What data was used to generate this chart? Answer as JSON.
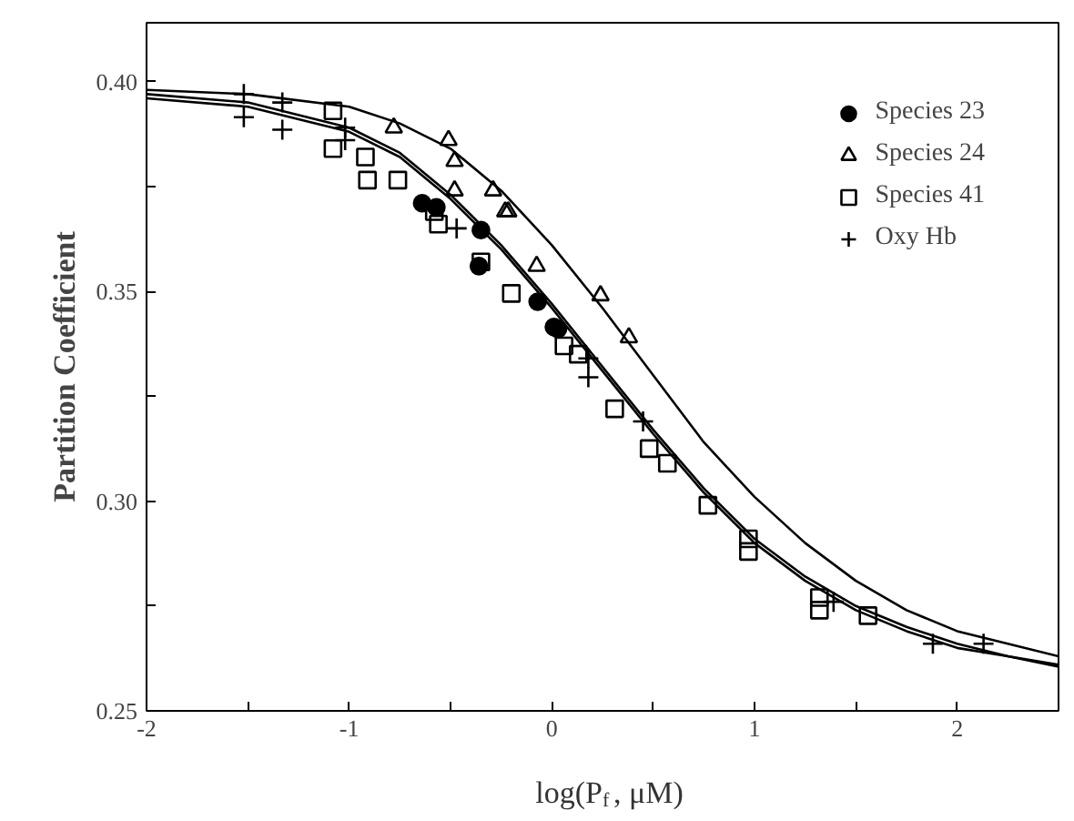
{
  "chart_data": {
    "type": "scatter",
    "xlabel": "log(P$_{f}$, μM)",
    "ylabel": "Partition Coefficient",
    "xlim": [
      -2,
      2.5
    ],
    "ylim": [
      0.25,
      0.414
    ],
    "xticks": [
      -2,
      {
        "value": -1.5,
        "label": null
      },
      -1,
      {
        "value": -0.5,
        "label": null
      },
      0,
      {
        "value": 0.5,
        "label": null
      },
      1,
      {
        "value": 1.5,
        "label": null
      },
      2
    ],
    "yticks": [
      "0.25",
      {
        "value": 0.275,
        "label": null
      },
      {
        "value": 0.3,
        "label": "0.30"
      },
      {
        "value": 0.325,
        "label": null
      },
      {
        "value": 0.35,
        "label": "0.35"
      },
      {
        "value": 0.375,
        "label": null
      },
      {
        "value": 0.4,
        "label": "0.40"
      }
    ],
    "grid": false,
    "legend": "top right",
    "series": [
      {
        "name": "Species 23",
        "color": "#000000",
        "marker": "circle",
        "x": [
          -0.64,
          -0.57,
          -0.35,
          -0.36,
          -0.07,
          0.01,
          0.03
        ],
        "values": [
          0.371,
          0.37,
          0.3646,
          0.356,
          0.3475,
          0.3415,
          0.341
        ]
      },
      {
        "name": "Species 24",
        "color": "#000000",
        "marker": "triangle",
        "x": [
          -0.78,
          -0.51,
          -0.48,
          -0.48,
          -0.29,
          -0.23,
          -0.215,
          -0.075,
          0.24,
          0.38
        ],
        "values": [
          0.389,
          0.386,
          0.381,
          0.374,
          0.374,
          0.369,
          0.369,
          0.356,
          0.349,
          0.339
        ]
      },
      {
        "name": "Species 41",
        "color": "#000000",
        "marker": "square",
        "x": [
          -1.08,
          -1.08,
          -0.92,
          -0.91,
          -0.76,
          -0.58,
          -0.56,
          -0.35,
          -0.2,
          0.06,
          0.13,
          0.31,
          0.48,
          0.57,
          0.77,
          0.97,
          0.97,
          1.32,
          1.32,
          1.56
        ],
        "values": [
          0.393,
          0.384,
          0.382,
          0.3765,
          0.3765,
          0.369,
          0.366,
          0.357,
          0.3495,
          0.337,
          0.335,
          0.322,
          0.3125,
          0.309,
          0.299,
          0.291,
          0.288,
          0.277,
          0.274,
          0.2727
        ]
      },
      {
        "name": "Oxy Hb",
        "color": "#000000",
        "marker": "cross",
        "x": [
          -1.52,
          -1.52,
          -1.33,
          -1.33,
          -1.02,
          -1.02,
          -0.47,
          0.18,
          0.18,
          0.45,
          1.39,
          1.88,
          2.13
        ],
        "values": [
          0.397,
          0.3915,
          0.395,
          0.3885,
          0.389,
          0.386,
          0.365,
          0.334,
          0.3295,
          0.319,
          0.276,
          0.266,
          0.266
        ]
      },
      {
        "type": "line",
        "color": "#000000",
        "marker": "none",
        "x": [
          -2,
          -1.5,
          -1,
          -0.75,
          -0.5,
          -0.25,
          0,
          0.25,
          0.5,
          0.75,
          1,
          1.25,
          1.5,
          1.75,
          2,
          2.25,
          2.5
        ],
        "values": [
          0.398,
          0.397,
          0.394,
          0.39,
          0.384,
          0.374,
          0.361,
          0.346,
          0.33,
          0.314,
          0.301,
          0.29,
          0.281,
          0.274,
          0.269,
          0.266,
          0.263
        ]
      },
      {
        "type": "line",
        "color": "#000000",
        "marker": "none",
        "x": [
          -2,
          -1.5,
          -1,
          -0.75,
          -0.5,
          -0.25,
          0,
          0.25,
          0.5,
          0.75,
          1,
          1.25,
          1.5,
          1.75,
          2,
          2.25,
          2.5
        ],
        "values": [
          0.396,
          0.394,
          0.388,
          0.382,
          0.372,
          0.36,
          0.346,
          0.331,
          0.316,
          0.302,
          0.29,
          0.281,
          0.274,
          0.269,
          0.265,
          0.263,
          0.2605
        ]
      },
      {
        "type": "line",
        "color": "#000000",
        "marker": "none",
        "x": [
          -2,
          -1.5,
          -1,
          -0.75,
          -0.5,
          -0.25,
          0,
          0.25,
          0.5,
          0.75,
          1,
          1.25,
          1.5,
          1.75,
          2,
          2.25,
          2.5
        ],
        "values": [
          0.397,
          0.395,
          0.389,
          0.383,
          0.373,
          0.361,
          0.347,
          0.332,
          0.317,
          0.303,
          0.291,
          0.282,
          0.275,
          0.27,
          0.266,
          0.263,
          0.261
        ]
      }
    ]
  }
}
